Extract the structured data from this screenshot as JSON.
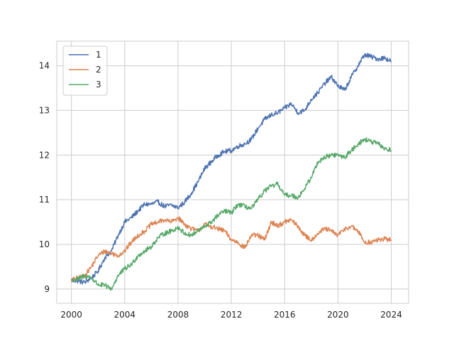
{
  "chart_data": {
    "type": "line",
    "title": "",
    "xlabel": "",
    "ylabel": "",
    "xlim": [
      1998.9,
      2025.3
    ],
    "ylim": [
      8.68,
      14.55
    ],
    "x_ticks": [
      2000,
      2004,
      2008,
      2012,
      2016,
      2020,
      2024
    ],
    "x_tick_labels": [
      "2000",
      "2004",
      "2008",
      "2012",
      "2016",
      "2020",
      "2024"
    ],
    "y_ticks": [
      9,
      10,
      11,
      12,
      13,
      14
    ],
    "y_tick_labels": [
      "9",
      "10",
      "11",
      "12",
      "13",
      "14"
    ],
    "grid": true,
    "legend_position": "top-left",
    "series": [
      {
        "name": "1",
        "color": "#4c72b0",
        "x": [
          2000.0,
          2000.5,
          2001.0,
          2001.5,
          2002.0,
          2002.5,
          2003.0,
          2003.5,
          2004.0,
          2004.5,
          2005.0,
          2005.5,
          2006.0,
          2006.5,
          2007.0,
          2007.5,
          2008.0,
          2008.5,
          2009.0,
          2009.5,
          2010.0,
          2010.5,
          2011.0,
          2011.5,
          2012.0,
          2012.5,
          2013.0,
          2013.5,
          2014.0,
          2014.5,
          2015.0,
          2015.5,
          2016.0,
          2016.5,
          2017.0,
          2017.5,
          2018.0,
          2018.5,
          2019.0,
          2019.5,
          2020.0,
          2020.5,
          2021.0,
          2021.5,
          2022.0,
          2022.5,
          2023.0,
          2023.5,
          2024.0
        ],
        "y": [
          9.2,
          9.18,
          9.15,
          9.25,
          9.4,
          9.7,
          9.85,
          10.2,
          10.5,
          10.6,
          10.75,
          10.9,
          10.9,
          10.95,
          10.85,
          10.88,
          10.82,
          10.95,
          11.15,
          11.4,
          11.7,
          11.85,
          12.0,
          12.08,
          12.1,
          12.2,
          12.25,
          12.35,
          12.6,
          12.8,
          12.9,
          12.95,
          13.05,
          13.15,
          12.95,
          13.0,
          13.25,
          13.4,
          13.6,
          13.75,
          13.55,
          13.45,
          13.75,
          14.0,
          14.25,
          14.2,
          14.15,
          14.18,
          14.1
        ]
      },
      {
        "name": "2",
        "color": "#dd8452",
        "x": [
          2000.0,
          2000.5,
          2001.0,
          2001.5,
          2002.0,
          2002.5,
          2003.0,
          2003.5,
          2004.0,
          2004.5,
          2005.0,
          2005.5,
          2006.0,
          2006.5,
          2007.0,
          2007.5,
          2008.0,
          2008.5,
          2009.0,
          2009.5,
          2010.0,
          2010.5,
          2011.0,
          2011.5,
          2012.0,
          2012.5,
          2013.0,
          2013.5,
          2014.0,
          2014.5,
          2015.0,
          2015.5,
          2016.0,
          2016.5,
          2017.0,
          2017.5,
          2018.0,
          2018.5,
          2019.0,
          2019.5,
          2020.0,
          2020.5,
          2021.0,
          2021.5,
          2022.0,
          2022.5,
          2023.0,
          2023.5,
          2024.0
        ],
        "y": [
          9.2,
          9.25,
          9.3,
          9.5,
          9.75,
          9.85,
          9.8,
          9.75,
          9.85,
          10.05,
          10.2,
          10.3,
          10.45,
          10.5,
          10.55,
          10.5,
          10.6,
          10.45,
          10.35,
          10.3,
          10.45,
          10.4,
          10.35,
          10.3,
          10.1,
          10.05,
          9.92,
          10.2,
          10.2,
          10.1,
          10.5,
          10.42,
          10.5,
          10.55,
          10.4,
          10.2,
          10.1,
          10.25,
          10.35,
          10.3,
          10.2,
          10.35,
          10.4,
          10.3,
          10.05,
          10.05,
          10.1,
          10.12,
          10.1
        ]
      },
      {
        "name": "3",
        "color": "#55a868",
        "x": [
          2000.0,
          2000.5,
          2001.0,
          2001.5,
          2002.0,
          2002.5,
          2003.0,
          2003.5,
          2004.0,
          2004.5,
          2005.0,
          2005.5,
          2006.0,
          2006.5,
          2007.0,
          2007.5,
          2008.0,
          2008.5,
          2009.0,
          2009.5,
          2010.0,
          2010.5,
          2011.0,
          2011.5,
          2012.0,
          2012.5,
          2013.0,
          2013.5,
          2014.0,
          2014.5,
          2015.0,
          2015.5,
          2016.0,
          2016.5,
          2017.0,
          2017.5,
          2018.0,
          2018.5,
          2019.0,
          2019.5,
          2020.0,
          2020.5,
          2021.0,
          2021.5,
          2022.0,
          2022.5,
          2023.0,
          2023.5,
          2024.0
        ],
        "y": [
          9.2,
          9.22,
          9.3,
          9.25,
          9.1,
          9.08,
          9.0,
          9.3,
          9.45,
          9.55,
          9.75,
          9.85,
          9.95,
          10.15,
          10.25,
          10.3,
          10.38,
          10.25,
          10.2,
          10.3,
          10.4,
          10.5,
          10.65,
          10.75,
          10.7,
          10.9,
          10.85,
          10.8,
          11.0,
          11.2,
          11.3,
          11.35,
          11.1,
          11.1,
          11.05,
          11.25,
          11.5,
          11.85,
          11.95,
          12.0,
          12.0,
          11.95,
          12.1,
          12.25,
          12.35,
          12.3,
          12.25,
          12.15,
          12.1
        ]
      }
    ]
  }
}
